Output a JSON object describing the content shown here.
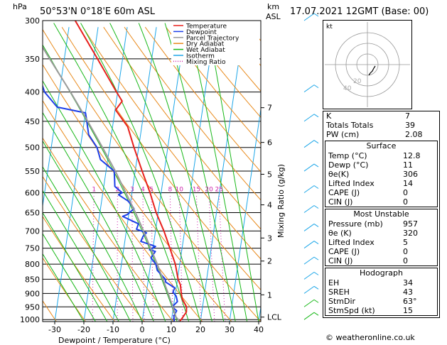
{
  "header": {
    "location": "50°53'N  0°18'E  60m  ASL",
    "datetime": "17.07.2021  12GMT  (Base: 00)"
  },
  "left_axis_unit": "hPa",
  "right_axis_unit_top": "km",
  "right_axis_unit_bottom": "ASL",
  "mixing_ratio_label": "Mixing Ratio (g/kg)",
  "lcl_label": "LCL",
  "legend": [
    {
      "name": "Temperature",
      "color": "#e8201c",
      "style": "solid"
    },
    {
      "name": "Dewpoint",
      "color": "#1c3ee8",
      "style": "solid"
    },
    {
      "name": "Parcel Trajectory",
      "color": "#9a9a9a",
      "style": "solid"
    },
    {
      "name": "Dry Adiabat",
      "color": "#e88a1c",
      "style": "solid"
    },
    {
      "name": "Wet Adiabat",
      "color": "#18b818",
      "style": "solid"
    },
    {
      "name": "Isotherm",
      "color": "#1ca6e8",
      "style": "solid"
    },
    {
      "name": "Mixing Ratio",
      "color": "#cc22aa",
      "style": "dotted"
    }
  ],
  "chart_data": {
    "type": "line",
    "title": "50°53'N  0°18'E  60m  ASL",
    "xlabel": "Dewpoint / Temperature (°C)",
    "ylabel": "hPa",
    "x_ticks": [
      -30,
      -20,
      -10,
      0,
      10,
      20,
      30,
      40
    ],
    "pressure_levels": [
      300,
      350,
      400,
      450,
      500,
      550,
      600,
      650,
      700,
      750,
      800,
      850,
      900,
      950,
      1000
    ],
    "km_ticks": [
      {
        "label": "7",
        "p": 426
      },
      {
        "label": "6",
        "p": 490
      },
      {
        "label": "5",
        "p": 557
      },
      {
        "label": "4",
        "p": 630
      },
      {
        "label": "3",
        "p": 720
      },
      {
        "label": "2",
        "p": 790
      },
      {
        "label": "1",
        "p": 905
      },
      {
        "label": "LCL",
        "p": 990
      }
    ],
    "mixing_ratio_labels": [
      "1",
      "2",
      "3",
      "4",
      "5",
      "8",
      "10",
      "15",
      "20",
      "25"
    ],
    "mixing_ratio_values": [
      1,
      2,
      3,
      4,
      5,
      8,
      10,
      15,
      20,
      25
    ],
    "series": [
      {
        "name": "Temperature",
        "color": "#e8201c",
        "points": [
          [
            1008,
            12.8
          ],
          [
            1000,
            13.3
          ],
          [
            970,
            14.7
          ],
          [
            950,
            14.5
          ],
          [
            920,
            12.6
          ],
          [
            900,
            12.0
          ],
          [
            870,
            11.3
          ],
          [
            850,
            10.2
          ],
          [
            800,
            8.5
          ],
          [
            750,
            5.8
          ],
          [
            720,
            4.1
          ],
          [
            700,
            2.9
          ],
          [
            650,
            -0.7
          ],
          [
            600,
            -3.8
          ],
          [
            550,
            -7.6
          ],
          [
            500,
            -11.6
          ],
          [
            460,
            -14.8
          ],
          [
            430,
            -19.8
          ],
          [
            415,
            -18.0
          ],
          [
            400,
            -20.4
          ],
          [
            350,
            -28.6
          ],
          [
            300,
            -38.2
          ]
        ]
      },
      {
        "name": "Dewpoint",
        "color": "#1c3ee8",
        "points": [
          [
            1008,
            11.0
          ],
          [
            985,
            10.6
          ],
          [
            965,
            11.3
          ],
          [
            950,
            9.6
          ],
          [
            930,
            11.1
          ],
          [
            910,
            10.4
          ],
          [
            895,
            9.1
          ],
          [
            880,
            9.5
          ],
          [
            860,
            6.1
          ],
          [
            850,
            5.8
          ],
          [
            820,
            2.6
          ],
          [
            800,
            1.8
          ],
          [
            780,
            -0.2
          ],
          [
            760,
            1.0
          ],
          [
            755,
            -1.1
          ],
          [
            745,
            0.8
          ],
          [
            730,
            -4.5
          ],
          [
            715,
            -4.0
          ],
          [
            705,
            -3.0
          ],
          [
            695,
            -6.6
          ],
          [
            680,
            -6.2
          ],
          [
            660,
            -12.0
          ],
          [
            655,
            -10.5
          ],
          [
            640,
            -8.5
          ],
          [
            630,
            -9.6
          ],
          [
            620,
            -11.0
          ],
          [
            605,
            -14.5
          ],
          [
            600,
            -13.4
          ],
          [
            585,
            -16.2
          ],
          [
            570,
            -16.6
          ],
          [
            550,
            -17.2
          ],
          [
            525,
            -22.5
          ],
          [
            500,
            -24.3
          ],
          [
            475,
            -27.8
          ],
          [
            445,
            -29.4
          ],
          [
            435,
            -30.0
          ],
          [
            425,
            -40.0
          ],
          [
            400,
            -45.1
          ],
          [
            300,
            -57.0
          ]
        ]
      },
      {
        "name": "Parcel Trajectory",
        "color": "#9a9a9a",
        "points": [
          [
            1008,
            12.8
          ],
          [
            1000,
            12.3
          ],
          [
            990,
            11.4
          ],
          [
            950,
            9.8
          ],
          [
            900,
            7.5
          ],
          [
            850,
            5.0
          ],
          [
            800,
            2.3
          ],
          [
            750,
            -0.8
          ],
          [
            700,
            -4.1
          ],
          [
            650,
            -7.8
          ],
          [
            600,
            -12.1
          ],
          [
            550,
            -16.8
          ],
          [
            500,
            -22.4
          ],
          [
            450,
            -28.8
          ],
          [
            400,
            -36.2
          ],
          [
            350,
            -45.0
          ],
          [
            300,
            -55.0
          ]
        ]
      }
    ],
    "xlim": [
      -35,
      40
    ],
    "ylim": [
      1008,
      300
    ]
  },
  "hodograph": {
    "label": "kt",
    "ring_labels": [
      "20",
      "40"
    ],
    "points": [
      [
        2,
        -15
      ],
      [
        4,
        -12
      ],
      [
        7,
        -9
      ],
      [
        9,
        -5
      ],
      [
        11,
        -2
      ]
    ]
  },
  "indices": {
    "rows": [
      {
        "key": "K",
        "value": "7"
      },
      {
        "key": "Totals Totals",
        "value": "39"
      },
      {
        "key": "PW (cm)",
        "value": "2.08"
      }
    ]
  },
  "surface": {
    "title": "Surface",
    "rows": [
      {
        "key": "Temp (°C)",
        "value": "12.8"
      },
      {
        "key": "Dewp (°C)",
        "value": "11"
      },
      {
        "key": "θe(K)",
        "value": "306"
      },
      {
        "key": "Lifted Index",
        "value": "14"
      },
      {
        "key": "CAPE (J)",
        "value": "0"
      },
      {
        "key": "CIN (J)",
        "value": "0"
      }
    ]
  },
  "most_unstable": {
    "title": "Most Unstable",
    "rows": [
      {
        "key": "Pressure (mb)",
        "value": "957"
      },
      {
        "key": "θe (K)",
        "value": "320"
      },
      {
        "key": "Lifted Index",
        "value": "5"
      },
      {
        "key": "CAPE (J)",
        "value": "0"
      },
      {
        "key": "CIN (J)",
        "value": "0"
      }
    ]
  },
  "hodograph_table": {
    "title": "Hodograph",
    "rows": [
      {
        "key": "EH",
        "value": "34"
      },
      {
        "key": "SREH",
        "value": "43"
      },
      {
        "key": "StmDir",
        "value": "63°"
      },
      {
        "key": "StmSpd (kt)",
        "value": "15"
      }
    ]
  },
  "footer": "© weatheronline.co.uk"
}
